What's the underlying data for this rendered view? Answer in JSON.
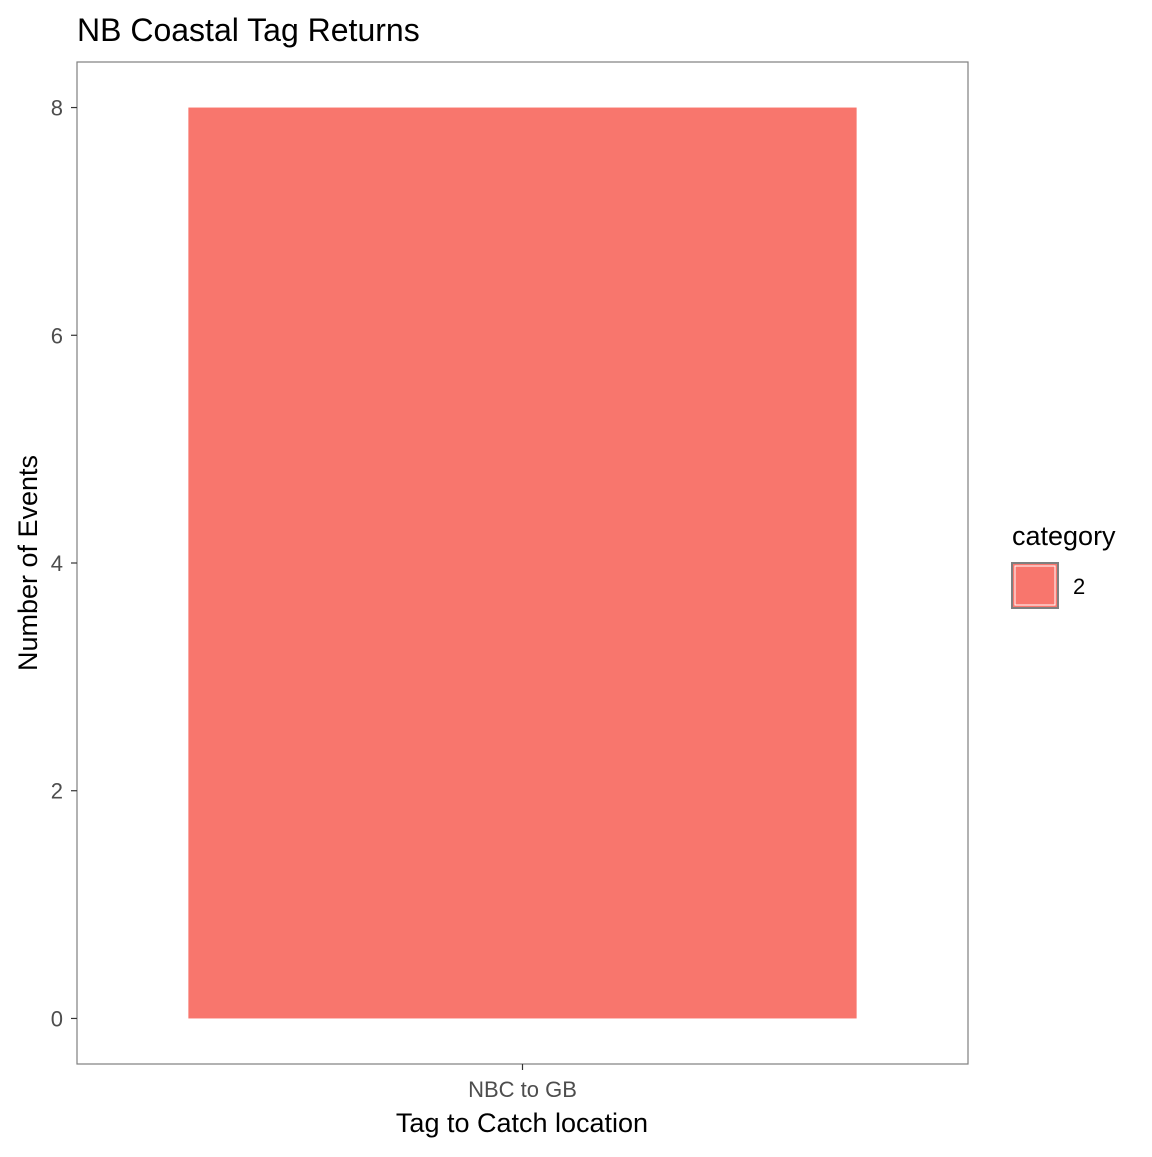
{
  "chart_data": {
    "type": "bar",
    "title": "NB Coastal Tag Returns",
    "xlabel": "Tag to Catch location",
    "ylabel": "Number of Events",
    "categories": [
      "NBC to GB"
    ],
    "series": [
      {
        "name": "2",
        "values": [
          8
        ],
        "color": "#F8766D"
      }
    ],
    "ylim": [
      -0.4,
      8.4
    ],
    "yticks": [
      0,
      2,
      4,
      6,
      8
    ],
    "grid": false,
    "legend": {
      "title": "category",
      "placement": "right",
      "entries": [
        "2"
      ]
    },
    "colors": {
      "bar": "#F8766D",
      "panel_border": "#7F7F7F",
      "tick_text": "#4D4D4D",
      "label_text": "#000000"
    }
  }
}
